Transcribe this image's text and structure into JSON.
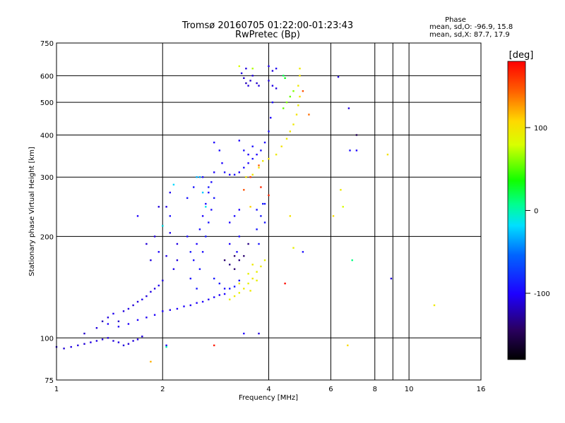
{
  "chart_data": {
    "type": "scatter",
    "title": "Tromsø 20160705 01:22:00-01:23:43",
    "subtitle": "RwPretec (Bp)",
    "xlabel": "Frequency [MHz]",
    "ylabel": "Stationary phase Virtual Height [km]",
    "x_scale": "log",
    "y_scale": "log",
    "xlim": [
      1,
      16
    ],
    "ylim": [
      75,
      750
    ],
    "x_ticks": [
      1,
      2,
      4,
      6,
      8,
      10,
      16
    ],
    "y_ticks": [
      75,
      100,
      200,
      300,
      400,
      500,
      600,
      750
    ],
    "grid": true,
    "color_scale": {
      "label": "[deg]",
      "ticks": [
        100,
        0,
        -100
      ],
      "range": [
        -180,
        180
      ]
    },
    "phase_stats": {
      "heading": "Phase",
      "o_line": "mean, sd,O: -96.9, 15.8",
      "x_line": "mean, sd,X:  87.7, 17.9"
    },
    "series": [
      {
        "points": [
          [
            1.0,
            94,
            -110
          ],
          [
            1.05,
            93,
            -112
          ],
          [
            1.1,
            94,
            -108
          ],
          [
            1.15,
            95,
            -110
          ],
          [
            1.2,
            96,
            -112
          ],
          [
            1.25,
            97,
            -110
          ],
          [
            1.3,
            98,
            -108
          ],
          [
            1.35,
            99,
            -110
          ],
          [
            1.4,
            100,
            -112
          ],
          [
            1.45,
            98,
            -110
          ],
          [
            1.5,
            97,
            -108
          ],
          [
            1.55,
            95,
            -110
          ],
          [
            1.6,
            96,
            -112
          ],
          [
            1.65,
            98,
            -110
          ],
          [
            1.7,
            99,
            -108
          ],
          [
            1.75,
            101,
            -110
          ],
          [
            1.2,
            103,
            -115
          ],
          [
            1.3,
            107,
            -110
          ],
          [
            1.35,
            112,
            -120
          ],
          [
            1.4,
            115,
            -110
          ],
          [
            1.45,
            118,
            -105
          ],
          [
            1.5,
            112,
            -115
          ],
          [
            1.55,
            120,
            -110
          ],
          [
            1.6,
            122,
            -108
          ],
          [
            1.65,
            125,
            -112
          ],
          [
            1.7,
            128,
            -110
          ],
          [
            1.75,
            130,
            -105
          ],
          [
            1.8,
            133,
            -110
          ],
          [
            1.85,
            137,
            -108
          ],
          [
            1.9,
            140,
            -110
          ],
          [
            1.95,
            143,
            -105
          ],
          [
            2.0,
            148,
            -110
          ],
          [
            1.4,
            110,
            -100
          ],
          [
            1.5,
            108,
            -104
          ],
          [
            1.6,
            110,
            -102
          ],
          [
            1.7,
            113,
            -100
          ],
          [
            1.8,
            115,
            -104
          ],
          [
            1.9,
            117,
            -102
          ],
          [
            2.0,
            120,
            -100
          ],
          [
            2.1,
            121,
            -104
          ],
          [
            2.2,
            122,
            -102
          ],
          [
            2.3,
            124,
            -100
          ],
          [
            2.4,
            125,
            -104
          ],
          [
            2.5,
            127,
            -102
          ],
          [
            2.6,
            128,
            -100
          ],
          [
            2.7,
            130,
            -104
          ],
          [
            2.8,
            132,
            -100
          ],
          [
            2.9,
            134,
            -104
          ],
          [
            3.0,
            135,
            -100
          ],
          [
            2.4,
            150,
            -100
          ],
          [
            2.45,
            170,
            -95
          ],
          [
            2.5,
            190,
            -100
          ],
          [
            2.55,
            210,
            -95
          ],
          [
            2.6,
            230,
            -100
          ],
          [
            2.65,
            250,
            -95
          ],
          [
            2.7,
            270,
            -100
          ],
          [
            2.75,
            290,
            -95
          ],
          [
            2.8,
            310,
            -100
          ],
          [
            2.5,
            140,
            -90
          ],
          [
            2.55,
            160,
            -92
          ],
          [
            2.6,
            180,
            -95
          ],
          [
            2.65,
            200,
            -90
          ],
          [
            2.7,
            220,
            -92
          ],
          [
            2.75,
            240,
            -95
          ],
          [
            2.8,
            260,
            -90
          ],
          [
            2.45,
            280,
            -92
          ],
          [
            2.6,
            300,
            -95
          ],
          [
            2.7,
            280,
            -90
          ],
          [
            2.35,
            260,
            -92
          ],
          [
            2.35,
            200,
            -95
          ],
          [
            2.4,
            180,
            -90
          ],
          [
            1.95,
            245,
            -110
          ],
          [
            2.05,
            245,
            -108
          ],
          [
            2.1,
            270,
            -105
          ],
          [
            1.8,
            190,
            -112
          ],
          [
            1.9,
            200,
            -110
          ],
          [
            2.0,
            215,
            -108
          ],
          [
            2.1,
            205,
            -106
          ],
          [
            2.2,
            190,
            -108
          ],
          [
            2.2,
            170,
            -110
          ],
          [
            2.15,
            160,
            -106
          ],
          [
            2.05,
            175,
            -108
          ],
          [
            1.85,
            170,
            -110
          ],
          [
            2.8,
            380,
            -100
          ],
          [
            2.9,
            360,
            -95
          ],
          [
            2.95,
            330,
            -100
          ],
          [
            3.0,
            310,
            -95
          ],
          [
            3.1,
            305,
            -100
          ],
          [
            3.2,
            305,
            -95
          ],
          [
            3.3,
            310,
            -100
          ],
          [
            3.4,
            320,
            -95
          ],
          [
            3.5,
            330,
            -100
          ],
          [
            3.6,
            340,
            -95
          ],
          [
            3.7,
            350,
            -100
          ],
          [
            3.8,
            360,
            -95
          ],
          [
            3.9,
            380,
            -100
          ],
          [
            4.0,
            410,
            -95
          ],
          [
            4.05,
            450,
            -100
          ],
          [
            4.1,
            500,
            -95
          ],
          [
            3.3,
            385,
            -100
          ],
          [
            3.4,
            360,
            -95
          ],
          [
            3.5,
            350,
            -100
          ],
          [
            3.6,
            370,
            -95
          ],
          [
            3.35,
            610,
            -110
          ],
          [
            3.4,
            590,
            -115
          ],
          [
            3.45,
            570,
            -120
          ],
          [
            3.5,
            560,
            -110
          ],
          [
            3.55,
            580,
            -115
          ],
          [
            3.6,
            600,
            -110
          ],
          [
            3.7,
            570,
            -115
          ],
          [
            3.75,
            560,
            -110
          ],
          [
            3.45,
            630,
            -110
          ],
          [
            4.0,
            640,
            -105
          ],
          [
            4.1,
            620,
            -110
          ],
          [
            4.2,
            630,
            -105
          ],
          [
            4.0,
            580,
            -110
          ],
          [
            4.1,
            560,
            -108
          ],
          [
            4.2,
            550,
            -110
          ],
          [
            2.8,
            150,
            -90
          ],
          [
            2.9,
            145,
            -92
          ],
          [
            3.0,
            140,
            -95
          ],
          [
            3.1,
            140,
            -92
          ],
          [
            3.2,
            142,
            -90
          ],
          [
            3.3,
            148,
            -95
          ],
          [
            3.1,
            220,
            -100
          ],
          [
            3.2,
            230,
            -95
          ],
          [
            3.3,
            240,
            -100
          ],
          [
            3.3,
            200,
            -95
          ],
          [
            3.1,
            190,
            -100
          ],
          [
            3.25,
            180,
            -95
          ],
          [
            3.7,
            210,
            -90
          ],
          [
            3.75,
            190,
            -92
          ],
          [
            3.8,
            230,
            -90
          ],
          [
            3.9,
            220,
            -92
          ],
          [
            3.85,
            250,
            -90
          ],
          [
            3.7,
            240,
            -92
          ],
          [
            3.9,
            250,
            -90
          ],
          [
            3.0,
            170,
            -140
          ],
          [
            3.1,
            165,
            -135
          ],
          [
            3.2,
            160,
            -140
          ],
          [
            3.3,
            170,
            -135
          ],
          [
            3.4,
            175,
            -140
          ],
          [
            3.5,
            190,
            -135
          ],
          [
            3.2,
            175,
            -140
          ],
          [
            1.7,
            230,
            -100
          ],
          [
            2.1,
            230,
            -95
          ],
          [
            1.95,
            180,
            -100
          ],
          [
            6.3,
            595,
            -110
          ],
          [
            7.1,
            400,
            -150
          ],
          [
            6.75,
            480,
            -110
          ],
          [
            6.8,
            360,
            -95
          ],
          [
            7.1,
            360,
            -100
          ],
          [
            8.9,
            150,
            -110
          ],
          [
            5.0,
            180,
            -95
          ],
          [
            3.75,
            103,
            -110
          ],
          [
            3.4,
            103,
            -100
          ],
          [
            2.05,
            95,
            -105
          ]
        ]
      },
      {
        "points": [
          [
            3.45,
            300,
            100
          ],
          [
            3.6,
            305,
            95
          ],
          [
            3.75,
            320,
            100
          ],
          [
            3.85,
            335,
            95
          ],
          [
            4.0,
            340,
            100
          ],
          [
            4.2,
            350,
            95
          ],
          [
            4.35,
            370,
            100
          ],
          [
            4.5,
            390,
            95
          ],
          [
            4.6,
            410,
            100
          ],
          [
            4.7,
            430,
            95
          ],
          [
            4.8,
            460,
            100
          ],
          [
            4.85,
            490,
            95
          ],
          [
            4.9,
            520,
            100
          ],
          [
            4.85,
            560,
            95
          ],
          [
            4.9,
            600,
            100
          ],
          [
            4.9,
            630,
            95
          ],
          [
            4.5,
            500,
            60
          ],
          [
            4.6,
            520,
            55
          ],
          [
            4.7,
            540,
            60
          ],
          [
            4.4,
            480,
            55
          ],
          [
            3.1,
            130,
            90
          ],
          [
            3.2,
            133,
            95
          ],
          [
            3.3,
            136,
            90
          ],
          [
            3.4,
            140,
            95
          ],
          [
            3.5,
            145,
            90
          ],
          [
            3.6,
            150,
            95
          ],
          [
            3.7,
            157,
            90
          ],
          [
            3.8,
            163,
            95
          ],
          [
            3.9,
            170,
            90
          ],
          [
            3.3,
            145,
            95
          ],
          [
            3.5,
            155,
            90
          ],
          [
            3.6,
            165,
            95
          ],
          [
            3.7,
            148,
            90
          ],
          [
            3.55,
            138,
            95
          ],
          [
            3.3,
            640,
            80
          ],
          [
            3.6,
            630,
            70
          ],
          [
            4.6,
            230,
            100
          ],
          [
            4.7,
            185,
            90
          ],
          [
            6.5,
            245,
            80
          ],
          [
            6.4,
            275,
            95
          ],
          [
            8.7,
            350,
            100
          ],
          [
            11.8,
            125,
            95
          ],
          [
            6.1,
            230,
            105
          ],
          [
            6.7,
            95,
            105
          ],
          [
            1.85,
            85,
            120
          ],
          [
            3.55,
            245,
            110
          ]
        ]
      },
      {
        "points": [
          [
            2.8,
            95,
            170
          ],
          [
            4.45,
            145,
            175
          ],
          [
            3.4,
            275,
            150
          ],
          [
            4.0,
            265,
            165
          ],
          [
            5.2,
            460,
            140
          ],
          [
            5.0,
            540,
            150
          ],
          [
            3.55,
            300,
            160
          ],
          [
            3.75,
            325,
            145
          ],
          [
            3.8,
            280,
            165
          ]
        ]
      },
      {
        "points": [
          [
            2.05,
            94,
            0
          ],
          [
            4.4,
            600,
            20
          ],
          [
            4.45,
            590,
            30
          ],
          [
            6.9,
            170,
            10
          ],
          [
            2.15,
            285,
            -20
          ],
          [
            2.5,
            300,
            -30
          ],
          [
            2.6,
            270,
            -25
          ],
          [
            2.65,
            245,
            -15
          ],
          [
            2.55,
            300,
            -35
          ],
          [
            2.0,
            215,
            -10
          ]
        ]
      }
    ]
  }
}
